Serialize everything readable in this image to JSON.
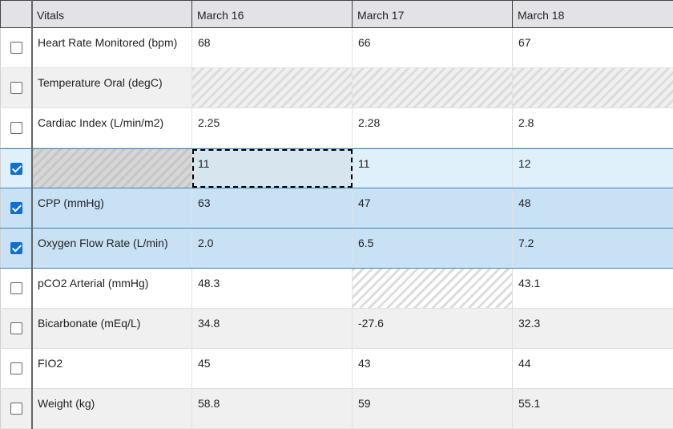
{
  "header": {
    "columns": [
      "Vitals",
      "March 16",
      "March 17",
      "March 18"
    ]
  },
  "rows": [
    {
      "label": "Heart Rate Monitored (bpm)",
      "checked": false,
      "values": [
        "68",
        "66",
        "67"
      ]
    },
    {
      "label": "Temperature Oral (degC)",
      "checked": false,
      "values": [
        "",
        "",
        ""
      ]
    },
    {
      "label": "Cardiac Index (L/min/m2)",
      "checked": false,
      "values": [
        "2.25",
        "2.28",
        "2.8"
      ]
    },
    {
      "label": "",
      "checked": true,
      "values": [
        "11",
        "11",
        "12"
      ]
    },
    {
      "label": "CPP (mmHg)",
      "checked": true,
      "values": [
        "63",
        "47",
        "48"
      ]
    },
    {
      "label": "Oxygen Flow Rate (L/min)",
      "checked": true,
      "values": [
        "2.0",
        "6.5",
        "7.2"
      ]
    },
    {
      "label": "pCO2 Arterial (mmHg)",
      "checked": false,
      "values": [
        "48.3",
        "",
        "43.1"
      ]
    },
    {
      "label": "Bicarbonate (mEq/L)",
      "checked": false,
      "values": [
        "34.8",
        "-27.6",
        "32.3"
      ]
    },
    {
      "label": "FIO2",
      "checked": false,
      "values": [
        "45",
        "43",
        "44"
      ]
    },
    {
      "label": "Weight (kg)",
      "checked": false,
      "values": [
        "58.8",
        "59",
        "55.1"
      ]
    }
  ]
}
